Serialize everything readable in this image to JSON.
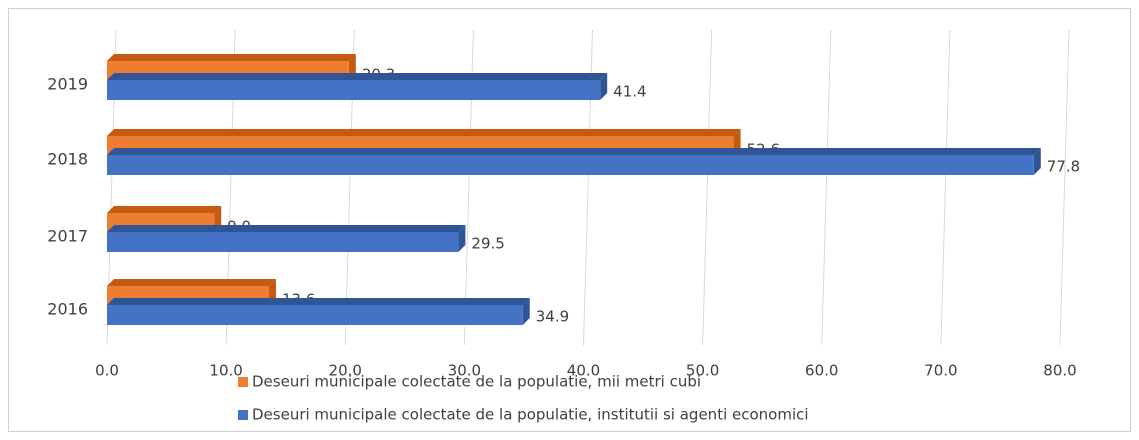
{
  "chart_data": {
    "type": "bar3d-horizontal",
    "categories": [
      "2016",
      "2017",
      "2018",
      "2019"
    ],
    "series": [
      {
        "name": "Deseuri municipale colectate de la populatie, mii metri cubi",
        "color": "#ed7d31",
        "side": "#c55a11",
        "values": [
          13.6,
          9.0,
          52.6,
          20.3
        ],
        "value_labels": [
          "13.6",
          "9.0",
          "52.6",
          "20.3"
        ]
      },
      {
        "name": "Deseuri municipale colectate de la populatie, institutii si agenti economici",
        "color": "#4472c4",
        "side": "#2f5597",
        "values": [
          34.9,
          29.5,
          77.8,
          41.4
        ],
        "value_labels": [
          "34.9",
          "29.5",
          "77.8",
          "41.4"
        ]
      }
    ],
    "xlim": [
      0,
      80
    ],
    "xticks": [
      {
        "value": 0,
        "label": "0.0"
      },
      {
        "value": 10,
        "label": "10.0"
      },
      {
        "value": 20,
        "label": "20.0"
      },
      {
        "value": 30,
        "label": "30.0"
      },
      {
        "value": 40,
        "label": "40.0"
      },
      {
        "value": 50,
        "label": "50.0"
      },
      {
        "value": 60,
        "label": "60.0"
      },
      {
        "value": 70,
        "label": "70.0"
      },
      {
        "value": 80,
        "label": "80.0"
      }
    ],
    "grid": true
  }
}
